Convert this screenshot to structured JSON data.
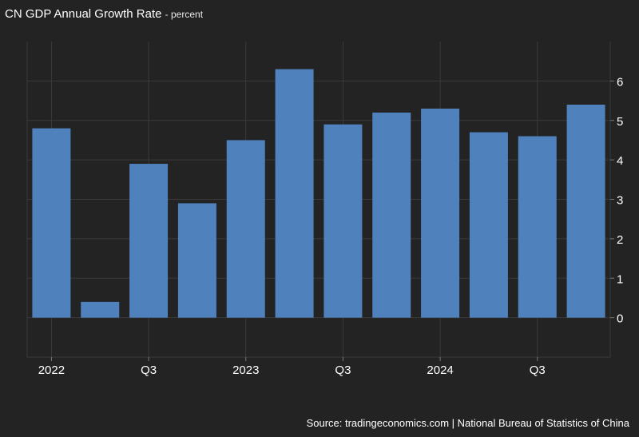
{
  "chart_data": {
    "type": "bar",
    "title": "CN GDP Annual Growth Rate",
    "unit": "percent",
    "source": "Source: tradingeconomics.com | National Bureau of Statistics of China",
    "categories": [
      "2022 Q1",
      "2022 Q2",
      "2022 Q3",
      "2022 Q4",
      "2023 Q1",
      "2023 Q2",
      "2023 Q3",
      "2023 Q4",
      "2024 Q1",
      "2024 Q2",
      "2024 Q3",
      "2024 Q4"
    ],
    "values": [
      4.8,
      0.4,
      3.9,
      2.9,
      4.5,
      6.3,
      4.9,
      5.2,
      5.3,
      4.7,
      4.6,
      5.4
    ],
    "x_tick_labels": [
      {
        "index": 0,
        "label": "2022"
      },
      {
        "index": 2,
        "label": "Q3"
      },
      {
        "index": 4,
        "label": "2023"
      },
      {
        "index": 6,
        "label": "Q3"
      },
      {
        "index": 8,
        "label": "2024"
      },
      {
        "index": 10,
        "label": "Q3"
      }
    ],
    "y_ticks": [
      0,
      1,
      2,
      3,
      4,
      5,
      6
    ],
    "ylim": [
      -1,
      7
    ],
    "y_axis_position": "right",
    "grid": true,
    "bar_color": "#4f81bd",
    "background_color": "#232323",
    "grid_color": "#3a3a3a"
  }
}
